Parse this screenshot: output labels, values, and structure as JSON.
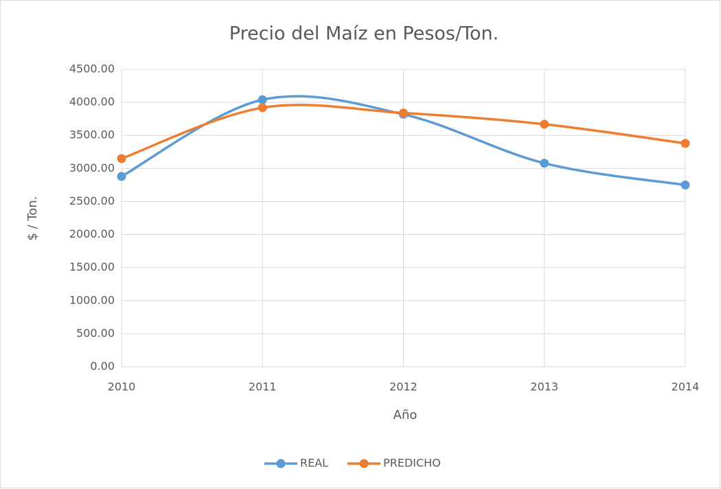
{
  "chart_data": {
    "type": "line",
    "smooth": true,
    "title": "Precio del Maíz en Pesos/Ton.",
    "x_label": "Año",
    "y_label": "$ / Ton.",
    "x": [
      2010,
      2011,
      2012,
      2013,
      2014
    ],
    "series": [
      {
        "name": "REAL",
        "color": "#5b9bd5",
        "values": [
          2880,
          4040,
          3820,
          3080,
          2750
        ]
      },
      {
        "name": "PREDICHO",
        "color": "#ed7d31",
        "values": [
          3150,
          3920,
          3840,
          3670,
          3380
        ]
      }
    ],
    "xlim": [
      2010,
      2014
    ],
    "xticks": [
      2010,
      2011,
      2012,
      2013,
      2014
    ],
    "ylim": [
      0,
      4500
    ],
    "yticks": [
      {
        "value": 0,
        "label": "0.00"
      },
      {
        "value": 500,
        "label": "500.00"
      },
      {
        "value": 1000,
        "label": "1000.00"
      },
      {
        "value": 1500,
        "label": "1500.00"
      },
      {
        "value": 2000,
        "label": "2000.00"
      },
      {
        "value": 2500,
        "label": "2500.00"
      },
      {
        "value": 3000,
        "label": "3000.00"
      },
      {
        "value": 3500,
        "label": "3500.00"
      },
      {
        "value": 4000,
        "label": "4000.00"
      },
      {
        "value": 4500,
        "label": "4500.00"
      }
    ],
    "grid": true,
    "legend": "bottom"
  }
}
